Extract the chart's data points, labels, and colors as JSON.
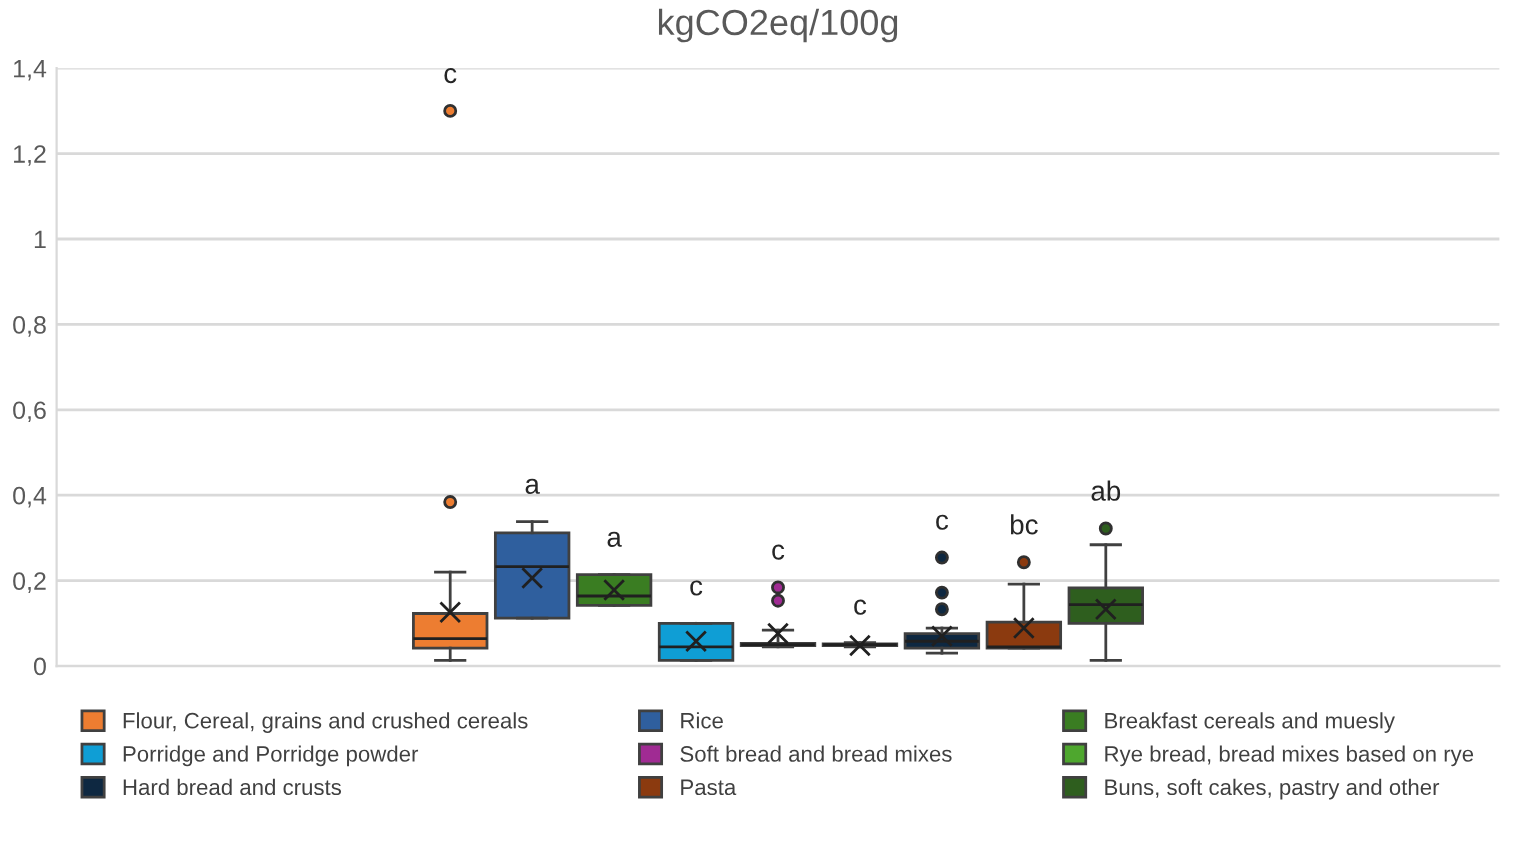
{
  "chart_data": {
    "type": "box",
    "title": "kgCO2eq/100g",
    "categories": [
      null
    ],
    "series": [
      {
        "name": "Flour, Cereal, grains and crushed cereals",
        "color": "#ed7d31",
        "boxes": [
          {
            "low": 0.013,
            "q1": 0.042,
            "median": 0.064,
            "q3": 0.123,
            "high": 0.22,
            "mean": 0.126,
            "outliers": [
              0.384,
              1.3
            ]
          }
        ]
      },
      {
        "name": "Rice",
        "color": "#2f5f9e",
        "boxes": [
          {
            "low": 0.112,
            "q1": 0.112,
            "median": 0.233,
            "q3": 0.312,
            "high": 0.338,
            "mean": 0.206
          }
        ]
      },
      {
        "name": "Breakfast cereals and muesly",
        "color": "#3a7d22",
        "boxes": [
          {
            "low": 0.142,
            "q1": 0.142,
            "median": 0.164,
            "q3": 0.214,
            "high": 0.214,
            "mean": 0.178
          }
        ]
      },
      {
        "name": "Porridge and Porridge powder",
        "color": "#0f9ed5",
        "boxes": [
          {
            "low": 0.013,
            "q1": 0.013,
            "median": 0.045,
            "q3": 0.1,
            "high": 0.1,
            "mean": 0.058
          }
        ]
      },
      {
        "name": "Soft bread and bread mixes",
        "color": "#a02b93",
        "boxes": [
          {
            "low": 0.045,
            "q1": 0.048,
            "median": 0.05,
            "q3": 0.053,
            "high": 0.084,
            "mean": 0.076,
            "outliers": [
              0.153,
              0.184
            ]
          }
        ]
      },
      {
        "name": "Rye bread, bread mixes based on rye",
        "color": "#4ea72e",
        "boxes": [
          {
            "low": 0.045,
            "q1": 0.048,
            "median": 0.05,
            "q3": 0.052,
            "high": 0.055,
            "mean": 0.048
          }
        ]
      },
      {
        "name": "Hard bread and crusts",
        "color": "#0e2841",
        "boxes": [
          {
            "low": 0.03,
            "q1": 0.042,
            "median": 0.058,
            "q3": 0.076,
            "high": 0.089,
            "mean": 0.07,
            "outliers": [
              0.133,
              0.172,
              0.254
            ]
          }
        ]
      },
      {
        "name": "Pasta",
        "color": "#8b3a0f",
        "boxes": [
          {
            "low": 0.042,
            "q1": 0.042,
            "median": 0.045,
            "q3": 0.103,
            "high": 0.192,
            "mean": 0.089,
            "outliers": [
              0.243
            ]
          }
        ]
      },
      {
        "name": "Buns, soft cakes, pastry and other",
        "color": "#2e5e1e",
        "boxes": [
          {
            "low": 0.013,
            "q1": 0.1,
            "median": 0.144,
            "q3": 0.183,
            "high": 0.284,
            "mean": 0.133,
            "outliers": [
              0.322
            ]
          }
        ]
      }
    ],
    "annotations": [
      "c",
      "a",
      "a",
      "c",
      "c",
      "c",
      "c",
      "bc",
      "ab"
    ],
    "ylim": [
      0,
      1.4
    ],
    "yticks": [
      {
        "value": 0,
        "label": "0"
      },
      {
        "value": 0.2,
        "label": "0,2"
      },
      {
        "value": 0.4,
        "label": "0,4"
      },
      {
        "value": 0.6,
        "label": "0,6"
      },
      {
        "value": 0.8,
        "label": "0,8"
      },
      {
        "value": 1,
        "label": "1"
      },
      {
        "value": 1.2,
        "label": "1,2"
      },
      {
        "value": 1.4,
        "label": "1,4"
      }
    ],
    "grid": "y",
    "legend": "bottom",
    "marker": "circle"
  }
}
